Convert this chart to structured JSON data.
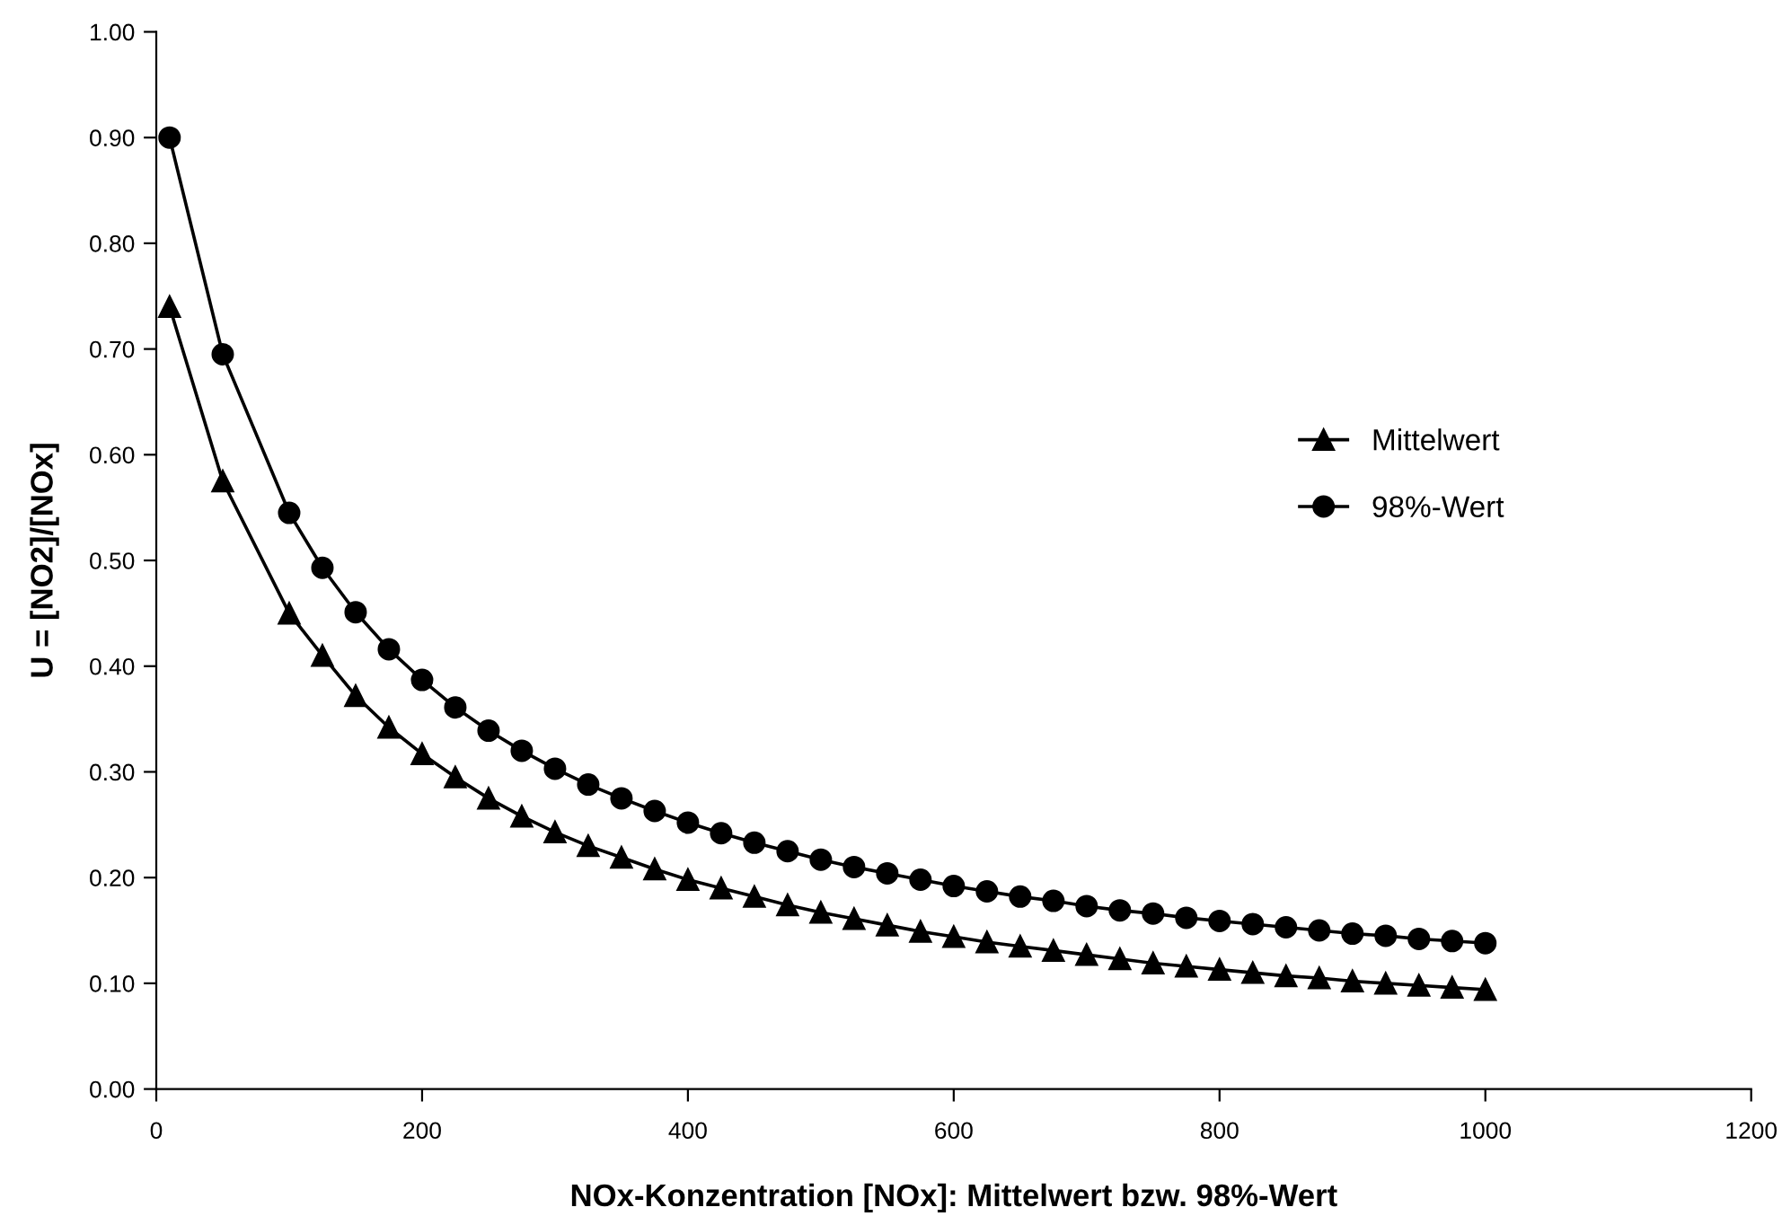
{
  "chart_data": {
    "type": "line",
    "xlabel": "NOx-Konzentration [NOx]: Mittelwert bzw. 98%-Wert",
    "ylabel": "U = [NO2]/[NOx]",
    "x": [
      10,
      50,
      100,
      125,
      150,
      175,
      200,
      225,
      250,
      275,
      300,
      325,
      350,
      375,
      400,
      425,
      450,
      475,
      500,
      525,
      550,
      575,
      600,
      625,
      650,
      675,
      700,
      725,
      750,
      775,
      800,
      825,
      850,
      875,
      900,
      925,
      950,
      975,
      1000
    ],
    "series": [
      {
        "name": "Mittelwert",
        "color": "#000000",
        "marker": "triangle",
        "values": [
          0.74,
          0.575,
          0.45,
          0.41,
          0.372,
          0.342,
          0.317,
          0.295,
          0.275,
          0.258,
          0.243,
          0.23,
          0.219,
          0.208,
          0.198,
          0.19,
          0.182,
          0.174,
          0.167,
          0.161,
          0.155,
          0.149,
          0.144,
          0.139,
          0.135,
          0.131,
          0.127,
          0.123,
          0.119,
          0.116,
          0.113,
          0.11,
          0.107,
          0.105,
          0.102,
          0.1,
          0.098,
          0.096,
          0.094
        ]
      },
      {
        "name": "98%-Wert",
        "color": "#000000",
        "marker": "circle",
        "values": [
          0.9,
          0.695,
          0.545,
          0.493,
          0.451,
          0.416,
          0.387,
          0.361,
          0.339,
          0.32,
          0.303,
          0.288,
          0.275,
          0.263,
          0.252,
          0.242,
          0.233,
          0.225,
          0.217,
          0.21,
          0.204,
          0.198,
          0.192,
          0.187,
          0.182,
          0.178,
          0.173,
          0.169,
          0.166,
          0.162,
          0.159,
          0.156,
          0.153,
          0.15,
          0.147,
          0.145,
          0.142,
          0.14,
          0.138
        ]
      }
    ],
    "xlim": [
      0,
      1200
    ],
    "xticks": [
      0,
      200,
      400,
      600,
      800,
      1000,
      1200
    ],
    "ylim": [
      0,
      1
    ],
    "yticks": [
      {
        "value": 0,
        "label": "0.00"
      },
      {
        "value": 0.1,
        "label": "0.10"
      },
      {
        "value": 0.2,
        "label": "0.20"
      },
      {
        "value": 0.3,
        "label": "0.30"
      },
      {
        "value": 0.4,
        "label": "0.40"
      },
      {
        "value": 0.5,
        "label": "0.50"
      },
      {
        "value": 0.6,
        "label": "0.60"
      },
      {
        "value": 0.7,
        "label": "0.70"
      },
      {
        "value": 0.8,
        "label": "0.80"
      },
      {
        "value": 0.9,
        "label": "0.90"
      },
      {
        "value": 1,
        "label": "1.00"
      }
    ],
    "grid": false,
    "legend": "right",
    "line_style": "solid"
  }
}
